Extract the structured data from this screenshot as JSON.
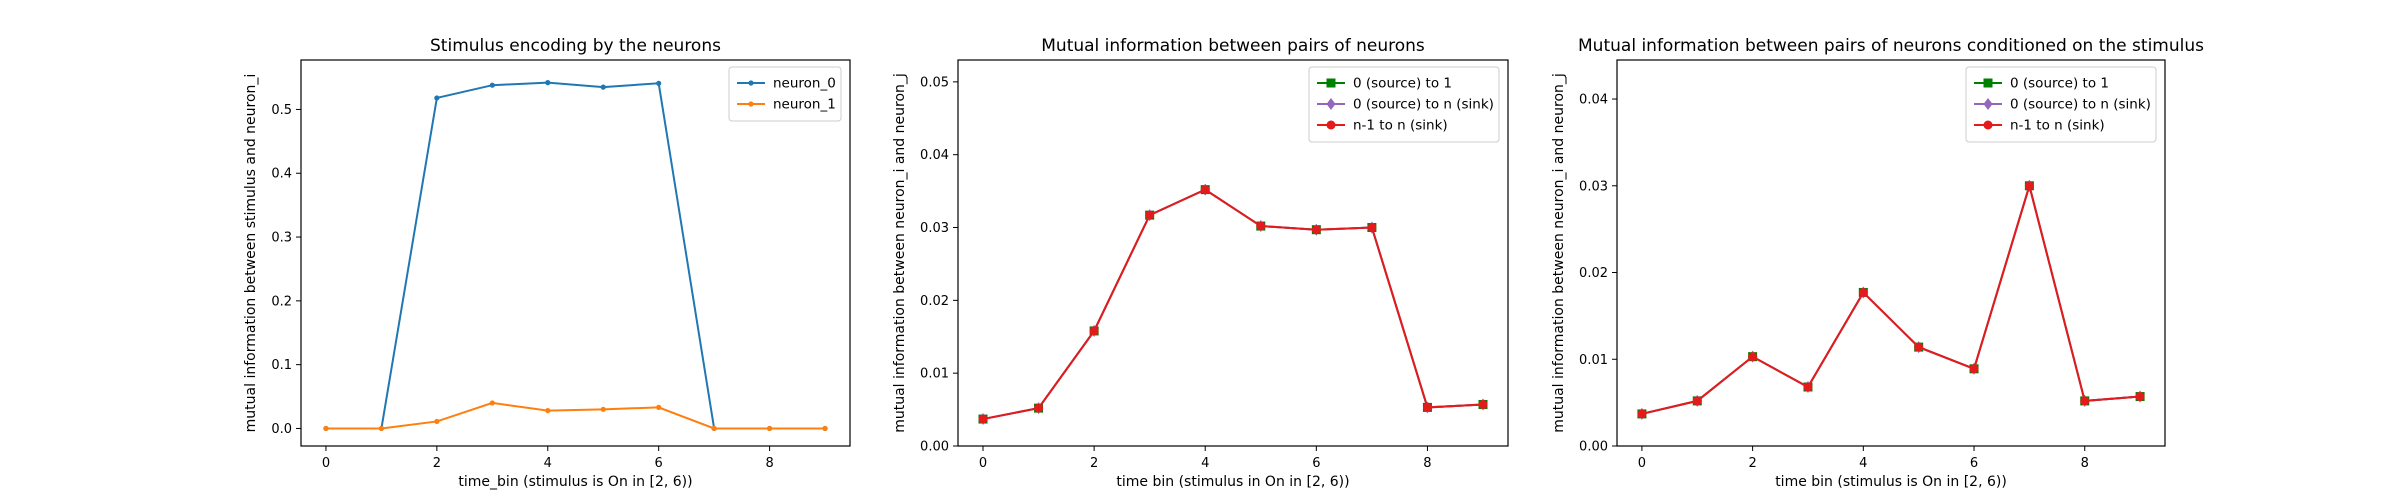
{
  "chart_data": [
    {
      "type": "line",
      "title": "Stimulus encoding by the neurons",
      "xlabel": "time_bin (stimulus is On in [2, 6))",
      "ylabel": "mutual information between stimulus and neuron_i",
      "xlim": [
        -0.45,
        9.45
      ],
      "ylim": [
        -0.0275,
        0.5775
      ],
      "xticks": [
        0,
        2,
        4,
        6,
        8
      ],
      "xtick_labels": [
        "0",
        "2",
        "4",
        "6",
        "8"
      ],
      "yticks": [
        0.0,
        0.1,
        0.2,
        0.3,
        0.4,
        0.5
      ],
      "ytick_labels": [
        "0.0",
        "0.1",
        "0.2",
        "0.3",
        "0.4",
        "0.5"
      ],
      "legend_position": "top-right",
      "x": [
        0,
        1,
        2,
        3,
        4,
        5,
        6,
        7,
        8,
        9
      ],
      "series": [
        {
          "name": "neuron_0",
          "color": "#1f77b4",
          "marker": "dot",
          "values": [
            0.0,
            0.0,
            0.518,
            0.538,
            0.542,
            0.535,
            0.541,
            0.0,
            0.0,
            0.0
          ]
        },
        {
          "name": "neuron_1",
          "color": "#ff7f0e",
          "marker": "dot",
          "values": [
            0.0,
            0.0,
            0.011,
            0.04,
            0.028,
            0.03,
            0.033,
            0.0,
            0.0,
            0.0
          ]
        }
      ]
    },
    {
      "type": "line",
      "title": "Mutual information between pairs of neurons",
      "xlabel": "time bin (stimulus in On in [2, 6))",
      "ylabel": "mutual information between neuron_i and neuron_j",
      "xlim": [
        -0.45,
        9.45
      ],
      "ylim": [
        0.0,
        0.053
      ],
      "xticks": [
        0,
        2,
        4,
        6,
        8
      ],
      "xtick_labels": [
        "0",
        "2",
        "4",
        "6",
        "8"
      ],
      "yticks": [
        0.0,
        0.01,
        0.02,
        0.03,
        0.04,
        0.05
      ],
      "ytick_labels": [
        "0.00",
        "0.01",
        "0.02",
        "0.03",
        "0.04",
        "0.05"
      ],
      "legend_position": "top-right",
      "x": [
        0,
        1,
        2,
        3,
        4,
        5,
        6,
        7,
        8,
        9
      ],
      "series": [
        {
          "name": "0 (source) to 1",
          "color": "#008000",
          "marker": "square",
          "values": [
            0.0037,
            0.0052,
            0.0158,
            0.0317,
            0.0352,
            0.0302,
            0.0297,
            0.03,
            0.0053,
            0.0057
          ]
        },
        {
          "name": "0 (source) to n (sink)",
          "color": "#9467bd",
          "marker": "diamond",
          "values": [
            0.0037,
            0.0052,
            0.0158,
            0.0317,
            0.0352,
            0.0302,
            0.0297,
            0.03,
            0.0053,
            0.0057
          ]
        },
        {
          "name": "n-1 to n (sink)",
          "color": "#e41a1c",
          "marker": "dot",
          "values": [
            0.0037,
            0.0052,
            0.0158,
            0.0317,
            0.0352,
            0.0302,
            0.0297,
            0.03,
            0.0053,
            0.0057
          ]
        }
      ]
    },
    {
      "type": "line",
      "title": "Mutual information between pairs of neurons conditioned on the stimulus",
      "xlabel": "time bin (stimulus is On in [2, 6))",
      "ylabel": "mutual information between neuron_i and neuron_j",
      "xlim": [
        -0.45,
        9.45
      ],
      "ylim": [
        0.0,
        0.0445
      ],
      "xticks": [
        0,
        2,
        4,
        6,
        8
      ],
      "xtick_labels": [
        "0",
        "2",
        "4",
        "6",
        "8"
      ],
      "yticks": [
        0.0,
        0.01,
        0.02,
        0.03,
        0.04
      ],
      "ytick_labels": [
        "0.00",
        "0.01",
        "0.02",
        "0.03",
        "0.04"
      ],
      "legend_position": "top-right",
      "x": [
        0,
        1,
        2,
        3,
        4,
        5,
        6,
        7,
        8,
        9
      ],
      "series": [
        {
          "name": "0 (source) to 1",
          "color": "#008000",
          "marker": "square",
          "values": [
            0.0037,
            0.0052,
            0.0103,
            0.0068,
            0.0177,
            0.0114,
            0.0089,
            0.03,
            0.0052,
            0.0057
          ]
        },
        {
          "name": "0 (source) to n (sink)",
          "color": "#9467bd",
          "marker": "diamond",
          "values": [
            0.0037,
            0.0052,
            0.0103,
            0.0068,
            0.0177,
            0.0114,
            0.0089,
            0.03,
            0.0052,
            0.0057
          ]
        },
        {
          "name": "n-1 to n (sink)",
          "color": "#e41a1c",
          "marker": "dot",
          "values": [
            0.0037,
            0.0052,
            0.0103,
            0.0068,
            0.0177,
            0.0114,
            0.0089,
            0.03,
            0.0052,
            0.0057
          ]
        }
      ]
    }
  ]
}
